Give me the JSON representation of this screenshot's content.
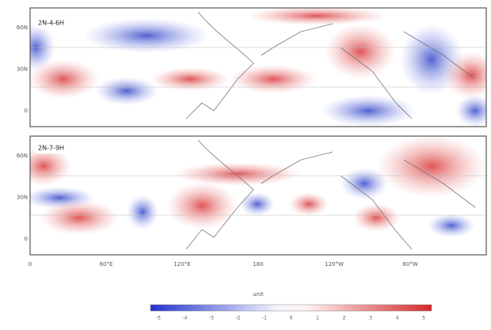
{
  "panels": [
    {
      "label": "2N-4-6H"
    },
    {
      "label": "2N-7-9H"
    }
  ],
  "x_axis": {
    "ticks": [
      "0",
      "60°E",
      "120°E",
      "180",
      "120°W",
      "60°W"
    ],
    "label": "unit"
  },
  "y_axis": {
    "ticks": [
      "60N",
      "30N",
      "0"
    ]
  },
  "colorbar": {
    "ticks": [
      "-5",
      "-4",
      "-3",
      "-2",
      "-1",
      "0",
      "1",
      "2",
      "3",
      "4",
      "5"
    ]
  }
}
